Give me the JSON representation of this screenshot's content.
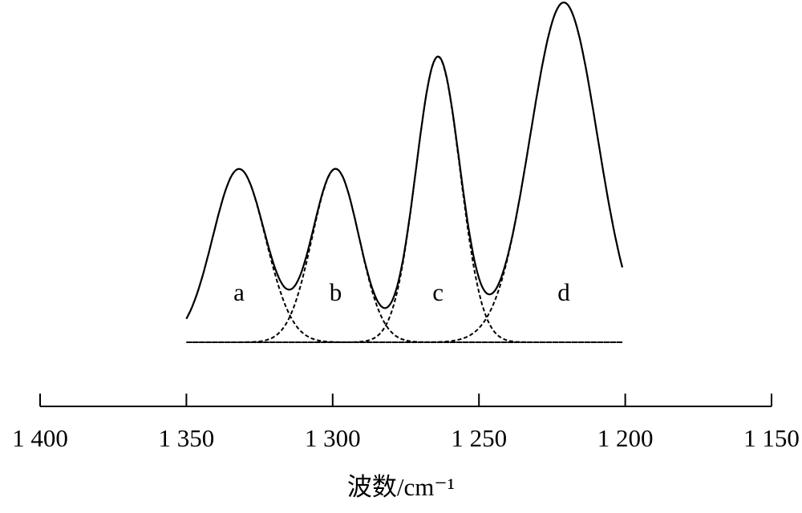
{
  "chart_data": {
    "type": "peak-fit",
    "x_label": "波数/cm⁻¹",
    "xlim": [
      1400,
      1150
    ],
    "xticks": [
      {
        "value": 1400,
        "label": "1 400"
      },
      {
        "value": 1350,
        "label": "1 350"
      },
      {
        "value": 1300,
        "label": "1 300"
      },
      {
        "value": 1250,
        "label": "1 250"
      },
      {
        "value": 1200,
        "label": "1 200"
      },
      {
        "value": 1150,
        "label": "1 150"
      }
    ],
    "ylim": [
      0,
      1
    ],
    "baseline": [
      1350,
      1201
    ],
    "color": "#000000",
    "peaks": [
      {
        "name": "a",
        "center": 1332,
        "height": 0.51,
        "sigma": 9
      },
      {
        "name": "b",
        "center": 1299,
        "height": 0.51,
        "sigma": 8
      },
      {
        "name": "c",
        "center": 1264,
        "height": 0.84,
        "sigma": 7.5
      },
      {
        "name": "d",
        "center": 1221,
        "height": 1.0,
        "sigma": 11.5
      }
    ]
  }
}
